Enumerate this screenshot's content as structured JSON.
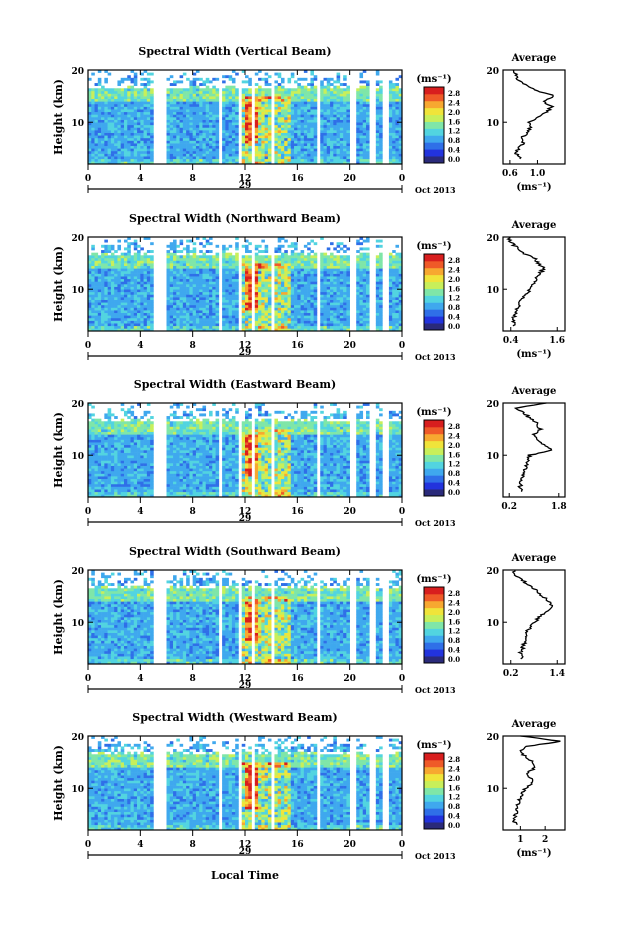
{
  "common": {
    "ylabel": "Height (km)",
    "xlabel": "Local Time",
    "xticks": [
      "0",
      "4",
      "8",
      "12",
      "16",
      "20",
      "0"
    ],
    "day_label": "29",
    "month_label": "Oct 2013",
    "unit_label": "(ms⁻¹)",
    "avg_title": "Average",
    "avg_xunit": "(ms⁻¹)",
    "yticks": [
      "20",
      "10"
    ],
    "colorbar_ticks": [
      "2.8",
      "2.4",
      "2.0",
      "1.6",
      "1.2",
      "0.8",
      "0.4",
      "0.0"
    ],
    "colorscale": [
      "#2a2a7a",
      "#2233dd",
      "#2f6fe8",
      "#3fa8ee",
      "#52d4e0",
      "#7fe6a8",
      "#c8ef5a",
      "#f0e43a",
      "#f7a830",
      "#ef5a28",
      "#d81e1e"
    ]
  },
  "chart_data": [
    {
      "type": "heatmap",
      "title": "Spectral Width (Vertical Beam)",
      "xlabel": "Local Time",
      "ylabel": "Height (km)",
      "xlim": [
        0,
        24
      ],
      "ylim": [
        2,
        20
      ],
      "zlim": [
        0.0,
        3.0
      ],
      "zunit": "ms⁻¹",
      "data_gaps_hours": [
        [
          5.1,
          5.9
        ],
        [
          10.0,
          10.3
        ],
        [
          11.6,
          11.8
        ],
        [
          12.4,
          12.7
        ],
        [
          14.0,
          14.3
        ],
        [
          17.5,
          17.8
        ],
        [
          19.9,
          20.4
        ],
        [
          21.6,
          21.9
        ],
        [
          22.6,
          23.0
        ]
      ],
      "average_profile": {
        "title": "Average",
        "xunit": "(ms⁻¹)",
        "xticks": [
          "0.6",
          "1.0"
        ],
        "xlim": [
          0.5,
          1.4
        ],
        "ylim": [
          2,
          20
        ],
        "height_km": [
          3,
          4,
          5,
          6,
          7,
          8,
          9,
          10,
          11,
          12,
          13,
          14,
          15,
          16,
          17,
          18,
          19,
          20
        ],
        "width": [
          0.75,
          0.7,
          0.72,
          0.8,
          0.78,
          0.85,
          0.9,
          0.88,
          1.0,
          1.15,
          1.2,
          1.1,
          1.25,
          1.0,
          0.85,
          0.72,
          0.7,
          0.65
        ]
      }
    },
    {
      "type": "heatmap",
      "title": "Spectral Width (Northward Beam)",
      "xlabel": "Local Time",
      "ylabel": "Height (km)",
      "xlim": [
        0,
        24
      ],
      "ylim": [
        2,
        20
      ],
      "zlim": [
        0.0,
        3.0
      ],
      "zunit": "ms⁻¹",
      "data_gaps_hours": [
        [
          5.1,
          5.9
        ],
        [
          10.0,
          10.3
        ],
        [
          11.6,
          11.8
        ],
        [
          12.4,
          12.7
        ],
        [
          14.0,
          14.3
        ],
        [
          17.5,
          17.8
        ],
        [
          19.9,
          20.4
        ],
        [
          21.6,
          21.9
        ],
        [
          22.6,
          23.0
        ]
      ],
      "average_profile": {
        "title": "Average",
        "xunit": "(ms⁻¹)",
        "xticks": [
          "0.4",
          "1.6"
        ],
        "xlim": [
          0.2,
          1.8
        ],
        "ylim": [
          2,
          20
        ],
        "height_km": [
          3,
          4,
          5,
          6,
          7,
          8,
          9,
          10,
          11,
          12,
          13,
          14,
          15,
          16,
          17,
          18,
          19,
          20
        ],
        "width": [
          0.5,
          0.45,
          0.5,
          0.55,
          0.6,
          0.65,
          0.8,
          0.9,
          1.0,
          1.05,
          1.15,
          1.25,
          1.1,
          1.0,
          0.7,
          0.55,
          0.4,
          0.35
        ]
      }
    },
    {
      "type": "heatmap",
      "title": "Spectral Width (Eastward Beam)",
      "xlabel": "Local Time",
      "ylabel": "Height (km)",
      "xlim": [
        0,
        24
      ],
      "ylim": [
        2,
        20
      ],
      "zlim": [
        0.0,
        3.0
      ],
      "zunit": "ms⁻¹",
      "data_gaps_hours": [
        [
          5.1,
          5.9
        ],
        [
          10.0,
          10.3
        ],
        [
          11.6,
          11.8
        ],
        [
          12.4,
          12.7
        ],
        [
          14.0,
          14.3
        ],
        [
          17.5,
          17.8
        ],
        [
          19.9,
          20.4
        ],
        [
          21.6,
          21.9
        ],
        [
          22.6,
          23.0
        ]
      ],
      "average_profile": {
        "title": "Average",
        "xunit": "",
        "xticks": [
          "0.2",
          "1.8"
        ],
        "xlim": [
          0.0,
          2.0
        ],
        "ylim": [
          2,
          20
        ],
        "height_km": [
          3,
          4,
          5,
          6,
          7,
          8,
          9,
          10,
          11,
          12,
          13,
          14,
          15,
          16,
          17,
          18,
          19,
          20
        ],
        "width": [
          0.6,
          0.55,
          0.6,
          0.65,
          0.7,
          0.75,
          0.8,
          0.85,
          1.6,
          1.3,
          1.1,
          1.0,
          1.2,
          1.1,
          0.9,
          0.7,
          0.4,
          1.4
        ]
      }
    },
    {
      "type": "heatmap",
      "title": "Spectral Width (Southward Beam)",
      "xlabel": "Local Time",
      "ylabel": "Height (km)",
      "xlim": [
        0,
        24
      ],
      "ylim": [
        2,
        20
      ],
      "zlim": [
        0.0,
        3.0
      ],
      "zunit": "ms⁻¹",
      "data_gaps_hours": [
        [
          5.1,
          5.9
        ],
        [
          10.0,
          10.3
        ],
        [
          11.6,
          11.8
        ],
        [
          12.4,
          12.7
        ],
        [
          14.0,
          14.3
        ],
        [
          17.5,
          17.8
        ],
        [
          19.9,
          20.4
        ],
        [
          21.6,
          21.9
        ],
        [
          22.6,
          23.0
        ]
      ],
      "average_profile": {
        "title": "Average",
        "xunit": "",
        "xticks": [
          "0.2",
          "1.4"
        ],
        "xlim": [
          0.0,
          1.6
        ],
        "ylim": [
          2,
          20
        ],
        "height_km": [
          3,
          4,
          5,
          6,
          7,
          8,
          9,
          10,
          11,
          12,
          13,
          14,
          15,
          16,
          17,
          18,
          19,
          20
        ],
        "width": [
          0.5,
          0.45,
          0.5,
          0.55,
          0.55,
          0.6,
          0.7,
          0.8,
          0.95,
          1.1,
          1.3,
          1.2,
          1.0,
          0.9,
          0.7,
          0.5,
          0.3,
          0.3
        ]
      }
    },
    {
      "type": "heatmap",
      "title": "Spectral Width (Westward Beam)",
      "xlabel": "Local Time",
      "ylabel": "Height (km)",
      "xlim": [
        0,
        24
      ],
      "ylim": [
        2,
        20
      ],
      "zlim": [
        0.0,
        3.0
      ],
      "zunit": "ms⁻¹",
      "data_gaps_hours": [
        [
          5.1,
          5.9
        ],
        [
          10.0,
          10.3
        ],
        [
          11.6,
          11.8
        ],
        [
          12.4,
          12.7
        ],
        [
          14.0,
          14.3
        ],
        [
          17.5,
          17.8
        ],
        [
          19.9,
          20.4
        ],
        [
          21.6,
          21.9
        ],
        [
          22.6,
          23.0
        ]
      ],
      "average_profile": {
        "title": "Average",
        "xunit": "(ms⁻¹)",
        "xticks": [
          "1",
          "2"
        ],
        "xlim": [
          0.3,
          2.8
        ],
        "ylim": [
          2,
          20
        ],
        "height_km": [
          3,
          4,
          5,
          6,
          7,
          8,
          9,
          10,
          11,
          12,
          13,
          14,
          15,
          16,
          17,
          18,
          19,
          20
        ],
        "width": [
          0.8,
          0.75,
          0.8,
          0.85,
          0.9,
          1.0,
          1.1,
          1.2,
          1.5,
          1.4,
          1.3,
          1.6,
          1.5,
          1.2,
          1.0,
          1.3,
          2.6,
          1.0
        ]
      }
    }
  ]
}
